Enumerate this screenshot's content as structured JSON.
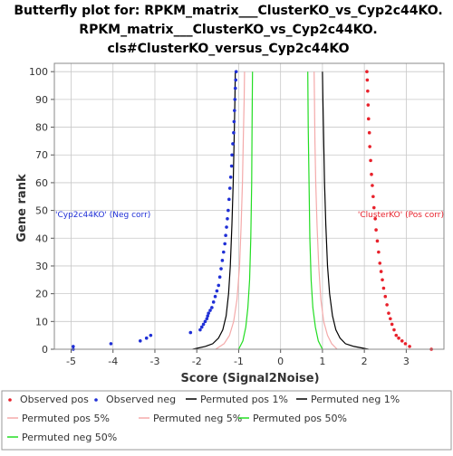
{
  "chart_data": {
    "type": "scatter",
    "title_lines": [
      "Butterfly plot for: RPKM_matrix___ClusterKO_vs_Cyp2c44KO.",
      "RPKM_matrix___ClusterKO_vs_Cyp2c44KO.",
      "cls#ClusterKO_versus_Cyp2c44KO"
    ],
    "xlabel": "Score (Signal2Noise)",
    "ylabel": "Gene rank",
    "xlim": [
      -5.4,
      3.9
    ],
    "ylim": [
      0,
      103
    ],
    "xticks": [
      "-5",
      "-4",
      "-3",
      "-2",
      "-1",
      "0",
      "1",
      "2",
      "3"
    ],
    "yticks": [
      "0",
      "10",
      "20",
      "30",
      "40",
      "50",
      "60",
      "70",
      "80",
      "90",
      "100"
    ],
    "grid": true,
    "annotations": {
      "neg": "'Cyp2c44KO' (Neg corr)",
      "pos": "'ClusterKO' (Pos corr)"
    },
    "colors": {
      "observed_pos": "#e8212b",
      "observed_neg": "#1f2fd6",
      "perm_1": "#000000",
      "perm_5": "#f4aaaa",
      "perm_50": "#22dd22",
      "grid": "#c8c8c8",
      "axis": "#000000"
    },
    "legend": {
      "position": "bottom",
      "items": [
        {
          "label": "Observed pos",
          "key": "observed_pos",
          "marker": "dot"
        },
        {
          "label": "Observed neg",
          "key": "observed_neg",
          "marker": "dot"
        },
        {
          "label": "Permuted pos 1%",
          "key": "perm_1",
          "marker": "line"
        },
        {
          "label": "Permuted neg 1%",
          "key": "perm_1",
          "marker": "line"
        },
        {
          "label": "Permuted pos 5%",
          "key": "perm_5",
          "marker": "line"
        },
        {
          "label": "Permuted neg 5%",
          "key": "perm_5",
          "marker": "line"
        },
        {
          "label": "Permuted pos 50%",
          "key": "perm_50",
          "marker": "line"
        },
        {
          "label": "Permuted neg 50%",
          "key": "perm_50",
          "marker": "line"
        }
      ]
    },
    "series": [
      {
        "name": "Observed pos",
        "kind": "points",
        "color_key": "observed_pos",
        "points": [
          [
            3.6,
            0
          ],
          [
            3.08,
            1
          ],
          [
            2.98,
            2
          ],
          [
            2.9,
            3
          ],
          [
            2.82,
            4
          ],
          [
            2.76,
            5
          ],
          [
            2.71,
            7
          ],
          [
            2.66,
            9
          ],
          [
            2.62,
            11
          ],
          [
            2.58,
            13
          ],
          [
            2.54,
            16
          ],
          [
            2.5,
            19
          ],
          [
            2.46,
            22
          ],
          [
            2.43,
            25
          ],
          [
            2.4,
            28
          ],
          [
            2.37,
            31
          ],
          [
            2.34,
            35
          ],
          [
            2.31,
            39
          ],
          [
            2.28,
            43
          ],
          [
            2.26,
            47
          ],
          [
            2.23,
            51
          ],
          [
            2.21,
            55
          ],
          [
            2.19,
            59
          ],
          [
            2.17,
            63
          ],
          [
            2.15,
            68
          ],
          [
            2.13,
            73
          ],
          [
            2.12,
            78
          ],
          [
            2.1,
            83
          ],
          [
            2.09,
            88
          ],
          [
            2.08,
            93
          ],
          [
            2.07,
            97
          ],
          [
            2.06,
            100
          ]
        ]
      },
      {
        "name": "Observed neg",
        "kind": "points",
        "color_key": "observed_neg",
        "points": [
          [
            -4.95,
            0
          ],
          [
            -4.95,
            1
          ],
          [
            -4.05,
            2
          ],
          [
            -3.35,
            3
          ],
          [
            -3.2,
            4
          ],
          [
            -3.1,
            5
          ],
          [
            -2.15,
            6
          ],
          [
            -1.92,
            7
          ],
          [
            -1.88,
            8
          ],
          [
            -1.84,
            9
          ],
          [
            -1.8,
            10
          ],
          [
            -1.76,
            11
          ],
          [
            -1.74,
            12
          ],
          [
            -1.72,
            13
          ],
          [
            -1.68,
            14
          ],
          [
            -1.64,
            15
          ],
          [
            -1.6,
            17
          ],
          [
            -1.56,
            19
          ],
          [
            -1.52,
            21
          ],
          [
            -1.48,
            23
          ],
          [
            -1.45,
            26
          ],
          [
            -1.42,
            29
          ],
          [
            -1.39,
            32
          ],
          [
            -1.36,
            35
          ],
          [
            -1.33,
            38
          ],
          [
            -1.31,
            41
          ],
          [
            -1.29,
            44
          ],
          [
            -1.27,
            47
          ],
          [
            -1.25,
            50
          ],
          [
            -1.23,
            54
          ],
          [
            -1.21,
            58
          ],
          [
            -1.19,
            62
          ],
          [
            -1.17,
            66
          ],
          [
            -1.16,
            70
          ],
          [
            -1.14,
            74
          ],
          [
            -1.12,
            78
          ],
          [
            -1.11,
            82
          ],
          [
            -1.1,
            86
          ],
          [
            -1.09,
            90
          ],
          [
            -1.08,
            94
          ],
          [
            -1.07,
            97
          ],
          [
            -1.06,
            100
          ]
        ]
      },
      {
        "name": "Permuted pos 1%",
        "kind": "line",
        "color_key": "perm_1",
        "points": [
          [
            2.1,
            0
          ],
          [
            1.75,
            1
          ],
          [
            1.55,
            2
          ],
          [
            1.42,
            4
          ],
          [
            1.32,
            7
          ],
          [
            1.24,
            12
          ],
          [
            1.17,
            20
          ],
          [
            1.12,
            30
          ],
          [
            1.08,
            45
          ],
          [
            1.05,
            60
          ],
          [
            1.03,
            75
          ],
          [
            1.01,
            90
          ],
          [
            1.0,
            100
          ]
        ]
      },
      {
        "name": "Permuted neg 1%",
        "kind": "line",
        "color_key": "perm_1",
        "points": [
          [
            -2.1,
            0
          ],
          [
            -1.8,
            1
          ],
          [
            -1.62,
            2
          ],
          [
            -1.48,
            4
          ],
          [
            -1.38,
            7
          ],
          [
            -1.3,
            12
          ],
          [
            -1.24,
            20
          ],
          [
            -1.2,
            30
          ],
          [
            -1.16,
            45
          ],
          [
            -1.13,
            60
          ],
          [
            -1.11,
            75
          ],
          [
            -1.09,
            90
          ],
          [
            -1.08,
            100
          ]
        ]
      },
      {
        "name": "Permuted pos 5%",
        "kind": "line",
        "color_key": "perm_5",
        "points": [
          [
            1.35,
            0
          ],
          [
            1.22,
            2
          ],
          [
            1.12,
            5
          ],
          [
            1.03,
            10
          ],
          [
            0.96,
            18
          ],
          [
            0.91,
            30
          ],
          [
            0.87,
            45
          ],
          [
            0.84,
            60
          ],
          [
            0.82,
            75
          ],
          [
            0.81,
            90
          ],
          [
            0.8,
            100
          ]
        ]
      },
      {
        "name": "Permuted neg 5%",
        "kind": "line",
        "color_key": "perm_5",
        "points": [
          [
            -1.55,
            0
          ],
          [
            -1.35,
            2
          ],
          [
            -1.22,
            5
          ],
          [
            -1.12,
            10
          ],
          [
            -1.04,
            18
          ],
          [
            -0.98,
            30
          ],
          [
            -0.94,
            45
          ],
          [
            -0.91,
            60
          ],
          [
            -0.89,
            75
          ],
          [
            -0.87,
            90
          ],
          [
            -0.86,
            100
          ]
        ]
      },
      {
        "name": "Permuted pos 50%",
        "kind": "line",
        "color_key": "perm_50",
        "points": [
          [
            1.0,
            0
          ],
          [
            0.9,
            3
          ],
          [
            0.83,
            8
          ],
          [
            0.77,
            15
          ],
          [
            0.73,
            25
          ],
          [
            0.7,
            40
          ],
          [
            0.68,
            60
          ],
          [
            0.66,
            80
          ],
          [
            0.65,
            100
          ]
        ]
      },
      {
        "name": "Permuted neg 50%",
        "kind": "line",
        "color_key": "perm_50",
        "points": [
          [
            -1.0,
            0
          ],
          [
            -0.9,
            3
          ],
          [
            -0.83,
            8
          ],
          [
            -0.78,
            15
          ],
          [
            -0.74,
            25
          ],
          [
            -0.71,
            40
          ],
          [
            -0.69,
            60
          ],
          [
            -0.68,
            80
          ],
          [
            -0.67,
            100
          ]
        ]
      }
    ]
  }
}
